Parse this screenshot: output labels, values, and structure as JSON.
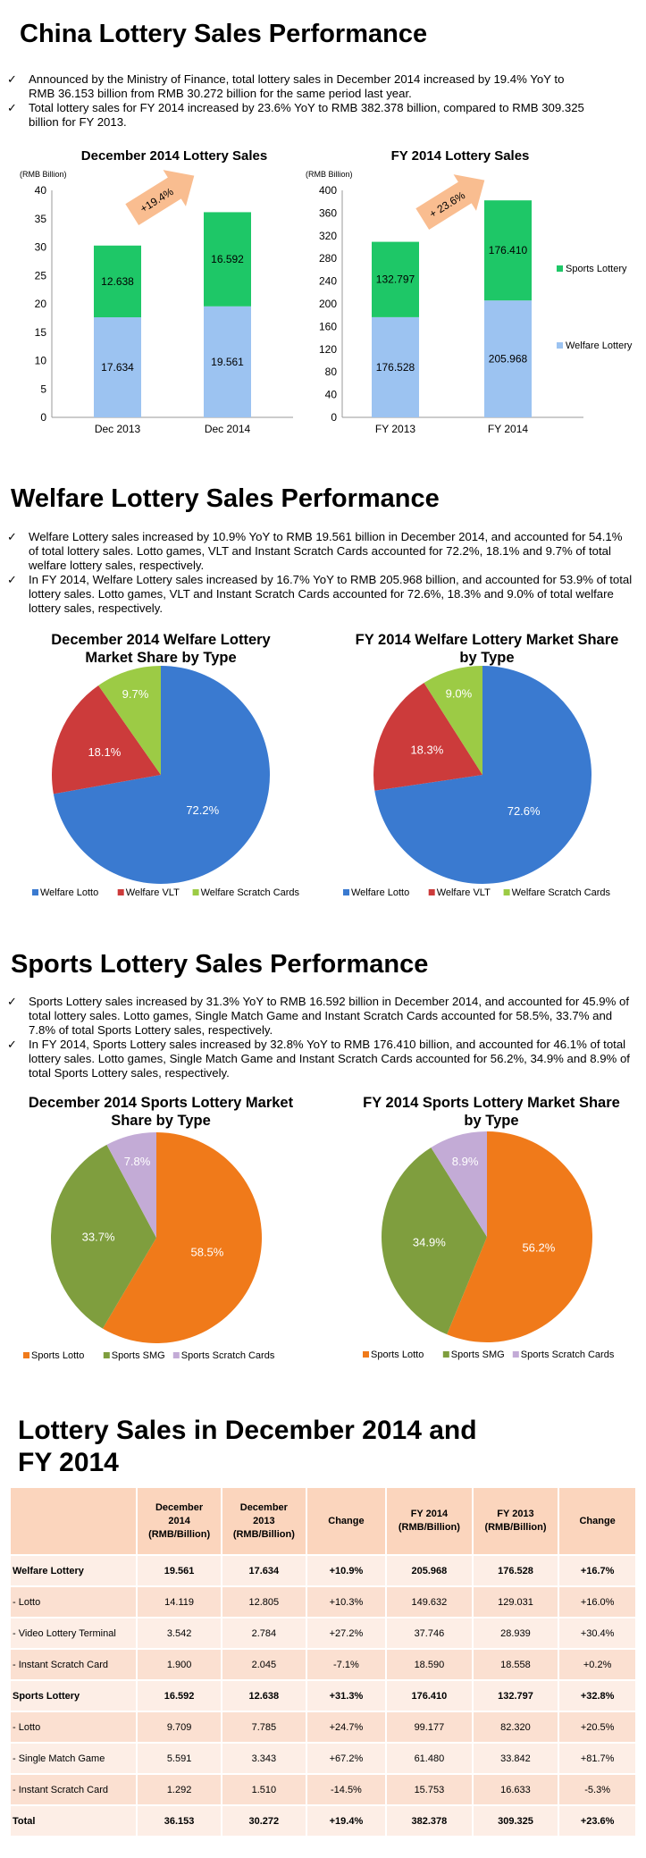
{
  "section1": {
    "title": "China Lottery Sales Performance",
    "bullets": [
      "Announced by the Ministry of Finance, total lottery sales in December 2014 increased by 19.4% YoY to RMB 36.153 billion from RMB 30.272 billion for the same period last year.",
      "Total lottery sales for FY 2014 increased by 23.6% YoY to RMB 382.378 billion, compared to RMB 309.325 billion for FY 2013."
    ]
  },
  "section2": {
    "title": "Welfare Lottery Sales Performance",
    "bullets": [
      "Welfare Lottery sales increased by 10.9% YoY to RMB 19.561 billion in December 2014, and accounted for 54.1% of total lottery sales. Lotto games, VLT and Instant Scratch Cards accounted for 72.2%, 18.1% and 9.7% of total welfare lottery sales, respectively.",
      "In FY 2014, Welfare Lottery sales increased by 16.7% YoY to RMB 205.968 billion, and accounted for 53.9% of total lottery sales. Lotto games, VLT and Instant Scratch Cards accounted for 72.6%, 18.3% and 9.0% of total welfare lottery sales, respectively."
    ]
  },
  "section3": {
    "title": "Sports Lottery Sales Performance",
    "bullets": [
      "Sports Lottery sales increased by 31.3% YoY to RMB 16.592 billion in December 2014, and accounted for 45.9% of total lottery sales. Lotto games, Single Match Game and Instant Scratch Cards accounted for 58.5%, 33.7% and 7.8% of total Sports Lottery sales, respectively.",
      "In FY 2014, Sports Lottery sales increased by 32.8% YoY to RMB 176.410 billion, and accounted for 46.1% of total lottery sales. Lotto games, Single Match Game and Instant Scratch Cards accounted for 56.2%, 34.9% and 8.9% of total Sports Lottery sales, respectively."
    ]
  },
  "section4": {
    "title_line1": "Lottery Sales in December 2014 and",
    "title_line2": "FY 2014"
  },
  "chart_data": [
    {
      "type": "bar",
      "stacked": true,
      "title": "December 2014 Lottery Sales",
      "ylabel": "(RMB Billion)",
      "categories": [
        "Dec 2013",
        "Dec 2014"
      ],
      "series": [
        {
          "name": "Welfare Lottery",
          "values": [
            17.634,
            19.561
          ],
          "labels": [
            "17.634",
            "19.561"
          ],
          "color": "#9cc3f1"
        },
        {
          "name": "Sports Lottery",
          "values": [
            12.638,
            16.592
          ],
          "labels": [
            "12.638",
            "16.592"
          ],
          "color": "#1ec767"
        }
      ],
      "ylim": [
        0,
        40
      ],
      "yticks": [
        "0",
        "5",
        "10",
        "15",
        "20",
        "25",
        "30",
        "35",
        "40"
      ],
      "annotation": "+19.4%",
      "grid": false
    },
    {
      "type": "bar",
      "stacked": true,
      "title": "FY 2014 Lottery Sales",
      "ylabel": "(RMB Billion)",
      "categories": [
        "FY 2013",
        "FY 2014"
      ],
      "series": [
        {
          "name": "Welfare Lottery",
          "values": [
            176.528,
            205.968
          ],
          "labels": [
            "176.528",
            "205.968"
          ],
          "color": "#9cc3f1"
        },
        {
          "name": "Sports Lottery",
          "values": [
            132.797,
            176.41
          ],
          "labels": [
            "132.797",
            "176.410"
          ],
          "color": "#1ec767"
        }
      ],
      "ylim": [
        0,
        400
      ],
      "yticks": [
        "0",
        "40",
        "80",
        "120",
        "160",
        "200",
        "240",
        "280",
        "320",
        "360",
        "400"
      ],
      "annotation": "+ 23.6%",
      "legend": [
        "Sports Lottery",
        "Welfare Lottery"
      ],
      "legend_position": "right",
      "grid": false
    },
    {
      "type": "pie",
      "title": "December 2014 Welfare Lottery Market Share by Type",
      "slices": [
        {
          "name": "Welfare Lotto",
          "value": 72.2,
          "label": "72.2%",
          "color": "#3a7ad0"
        },
        {
          "name": "Welfare VLT",
          "value": 18.1,
          "label": "18.1%",
          "color": "#cc3b3b"
        },
        {
          "name": "Welfare Scratch Cards",
          "value": 9.7,
          "label": "9.7%",
          "color": "#9ccb45"
        }
      ],
      "legend_position": "bottom"
    },
    {
      "type": "pie",
      "title": "FY 2014 Welfare Lottery Market Share by Type",
      "slices": [
        {
          "name": "Welfare Lotto",
          "value": 72.6,
          "label": "72.6%",
          "color": "#3a7ad0"
        },
        {
          "name": "Welfare VLT",
          "value": 18.3,
          "label": "18.3%",
          "color": "#cc3b3b"
        },
        {
          "name": "Welfare Scratch Cards",
          "value": 9.0,
          "label": "9.0%",
          "color": "#9ccb45"
        }
      ],
      "legend_position": "bottom"
    },
    {
      "type": "pie",
      "title": "December 2014 Sports Lottery Market Share by Type",
      "slices": [
        {
          "name": "Sports Lotto",
          "value": 58.5,
          "label": "58.5%",
          "color": "#f07a1a"
        },
        {
          "name": "Sports SMG",
          "value": 33.7,
          "label": "33.7%",
          "color": "#7f9e3e"
        },
        {
          "name": "Sports Scratch Cards",
          "value": 7.8,
          "label": "7.8%",
          "color": "#c3abd6"
        }
      ],
      "legend_position": "bottom"
    },
    {
      "type": "pie",
      "title": "FY 2014 Sports Lottery Market Share by Type",
      "slices": [
        {
          "name": "Sports Lotto",
          "value": 56.2,
          "label": "56.2%",
          "color": "#f07a1a"
        },
        {
          "name": "Sports SMG",
          "value": 34.9,
          "label": "34.9%",
          "color": "#7f9e3e"
        },
        {
          "name": "Sports Scratch Cards",
          "value": 8.9,
          "label": "8.9%",
          "color": "#c3abd6"
        }
      ],
      "legend_position": "bottom"
    },
    {
      "type": "table",
      "columns": [
        "",
        "December 2014 (RMB/Billion)",
        "December 2013 (RMB/Billion)",
        "Change",
        "FY 2014 (RMB/Billion)",
        "FY 2013 (RMB/Billion)",
        "Change"
      ],
      "header_lines": [
        [
          ""
        ],
        [
          "December",
          "2014",
          "(RMB/Billion)"
        ],
        [
          "December",
          "2013",
          "(RMB/Billion)"
        ],
        [
          "Change"
        ],
        [
          "FY 2014",
          "(RMB/Billion)"
        ],
        [
          "FY 2013",
          "(RMB/Billion)"
        ],
        [
          "Change"
        ]
      ],
      "rows": [
        {
          "bold": true,
          "cells": [
            "Welfare Lottery",
            "19.561",
            "17.634",
            "+10.9%",
            "205.968",
            "176.528",
            "+16.7%"
          ]
        },
        {
          "bold": false,
          "cells": [
            "- Lotto",
            "14.119",
            "12.805",
            "+10.3%",
            "149.632",
            "129.031",
            "+16.0%"
          ]
        },
        {
          "bold": false,
          "cells": [
            "- Video Lottery Terminal",
            "3.542",
            "2.784",
            "+27.2%",
            "37.746",
            "28.939",
            "+30.4%"
          ]
        },
        {
          "bold": false,
          "cells": [
            "- Instant Scratch Card",
            "1.900",
            "2.045",
            "-7.1%",
            "18.590",
            "18.558",
            "+0.2%"
          ]
        },
        {
          "bold": true,
          "cells": [
            "Sports Lottery",
            "16.592",
            "12.638",
            "+31.3%",
            "176.410",
            "132.797",
            "+32.8%"
          ]
        },
        {
          "bold": false,
          "cells": [
            "- Lotto",
            "9.709",
            "7.785",
            "+24.7%",
            "99.177",
            "82.320",
            "+20.5%"
          ]
        },
        {
          "bold": false,
          "cells": [
            "- Single Match Game",
            "5.591",
            "3.343",
            "+67.2%",
            "61.480",
            "33.842",
            "+81.7%"
          ]
        },
        {
          "bold": false,
          "cells": [
            "- Instant Scratch Card",
            "1.292",
            "1.510",
            "-14.5%",
            "15.753",
            "16.633",
            "-5.3%"
          ]
        },
        {
          "bold": true,
          "cells": [
            "Total",
            "36.153",
            "30.272",
            "+19.4%",
            "382.378",
            "309.325",
            "+23.6%"
          ]
        }
      ]
    }
  ]
}
